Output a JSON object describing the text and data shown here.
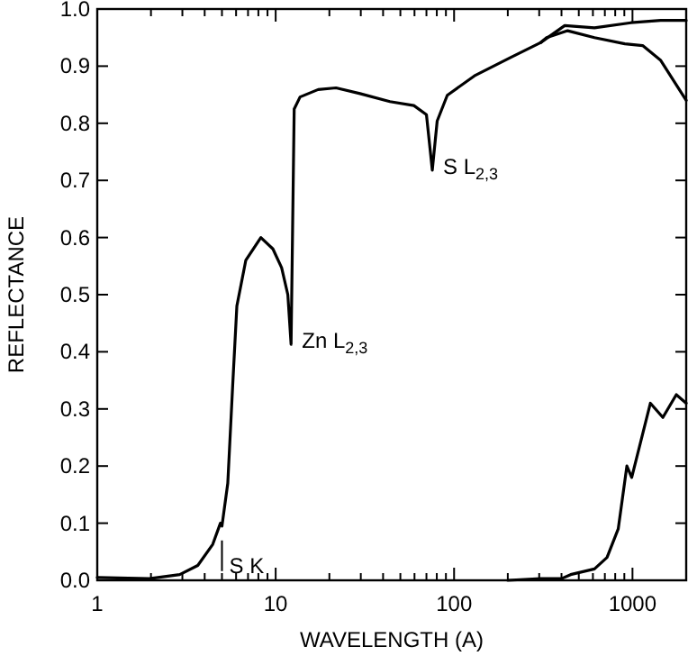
{
  "chart_data": {
    "type": "line",
    "xlabel": "WAVELENGTH (A)",
    "ylabel": "REFLECTANCE",
    "log": "x",
    "xlim": [
      1,
      2000
    ],
    "ylim": [
      0,
      1
    ],
    "xticks": [
      1,
      {
        "value": 2,
        "label": null
      },
      {
        "value": 3,
        "label": null
      },
      {
        "value": 4,
        "label": null
      },
      {
        "value": 5,
        "label": null
      },
      {
        "value": 6,
        "label": null
      },
      {
        "value": 7,
        "label": null
      },
      {
        "value": 8,
        "label": null
      },
      {
        "value": 9,
        "label": null
      },
      10,
      {
        "value": 20,
        "label": null
      },
      {
        "value": 30,
        "label": null
      },
      {
        "value": 40,
        "label": null
      },
      {
        "value": 50,
        "label": null
      },
      {
        "value": 60,
        "label": null
      },
      {
        "value": 70,
        "label": null
      },
      {
        "value": 80,
        "label": null
      },
      {
        "value": 90,
        "label": null
      },
      100,
      {
        "value": 200,
        "label": null
      },
      {
        "value": 300,
        "label": null
      },
      {
        "value": 400,
        "label": null
      },
      {
        "value": 500,
        "label": null
      },
      {
        "value": 600,
        "label": null
      },
      {
        "value": 700,
        "label": null
      },
      {
        "value": 800,
        "label": null
      },
      {
        "value": 900,
        "label": null
      },
      1000,
      {
        "value": 2000,
        "label": null
      }
    ],
    "yticks": [
      {
        "value": 0,
        "label": "0.0"
      },
      0.1,
      0.2,
      0.3,
      0.4,
      0.5,
      0.6,
      0.7,
      0.8,
      0.9,
      {
        "value": 1,
        "label": "1.0"
      }
    ],
    "grid": false,
    "marker": "none",
    "line_style": "solid",
    "series": [
      {
        "color": "#000000",
        "x": [
          1,
          1.96,
          2.9,
          3.66,
          4.44,
          4.9,
          5.0,
          5.39,
          5.74,
          6.06,
          6.8,
          8.26,
          9.65,
          10.8,
          11.7,
          12.2,
          12.7,
          13.7,
          17.3,
          21.8,
          29.7,
          43.7,
          59.5,
          70,
          75.5,
          80.4,
          91.6,
          130,
          207,
          305,
          417,
          612,
          980,
          1440,
          2000
        ],
        "values": [
          0.005,
          0.003,
          0.01,
          0.026,
          0.063,
          0.1,
          0.095,
          0.17,
          0.34,
          0.48,
          0.56,
          0.6,
          0.58,
          0.547,
          0.5,
          0.413,
          0.825,
          0.846,
          0.859,
          0.862,
          0.852,
          0.838,
          0.831,
          0.815,
          0.718,
          0.804,
          0.849,
          0.883,
          0.915,
          0.941,
          0.971,
          0.967,
          0.976,
          0.98,
          0.98
        ]
      },
      {
        "color": "#000000",
        "x": [
          305,
          330,
          433,
          612,
          906,
          1140,
          1440,
          2000
        ],
        "values": [
          0.941,
          0.95,
          0.962,
          0.95,
          0.939,
          0.936,
          0.91,
          0.84
        ]
      },
      {
        "color": "#000000",
        "x": [
          200,
          305,
          400,
          450,
          612,
          720,
          832,
          930,
          990,
          1260,
          1480,
          1760,
          2000
        ],
        "values": [
          0,
          0.003,
          0.003,
          0.01,
          0.02,
          0.04,
          0.09,
          0.2,
          0.18,
          0.31,
          0.285,
          0.325,
          0.31
        ]
      }
    ],
    "annotations": [
      {
        "text": "Zn L$_{2,3}$",
        "x": 12.2,
        "y": 0.413
      },
      {
        "text": "S L$_{2,3}$",
        "x": 75.5,
        "y": 0.718
      },
      {
        "text": "S K",
        "x": 5.0,
        "y": 0.095
      }
    ]
  }
}
